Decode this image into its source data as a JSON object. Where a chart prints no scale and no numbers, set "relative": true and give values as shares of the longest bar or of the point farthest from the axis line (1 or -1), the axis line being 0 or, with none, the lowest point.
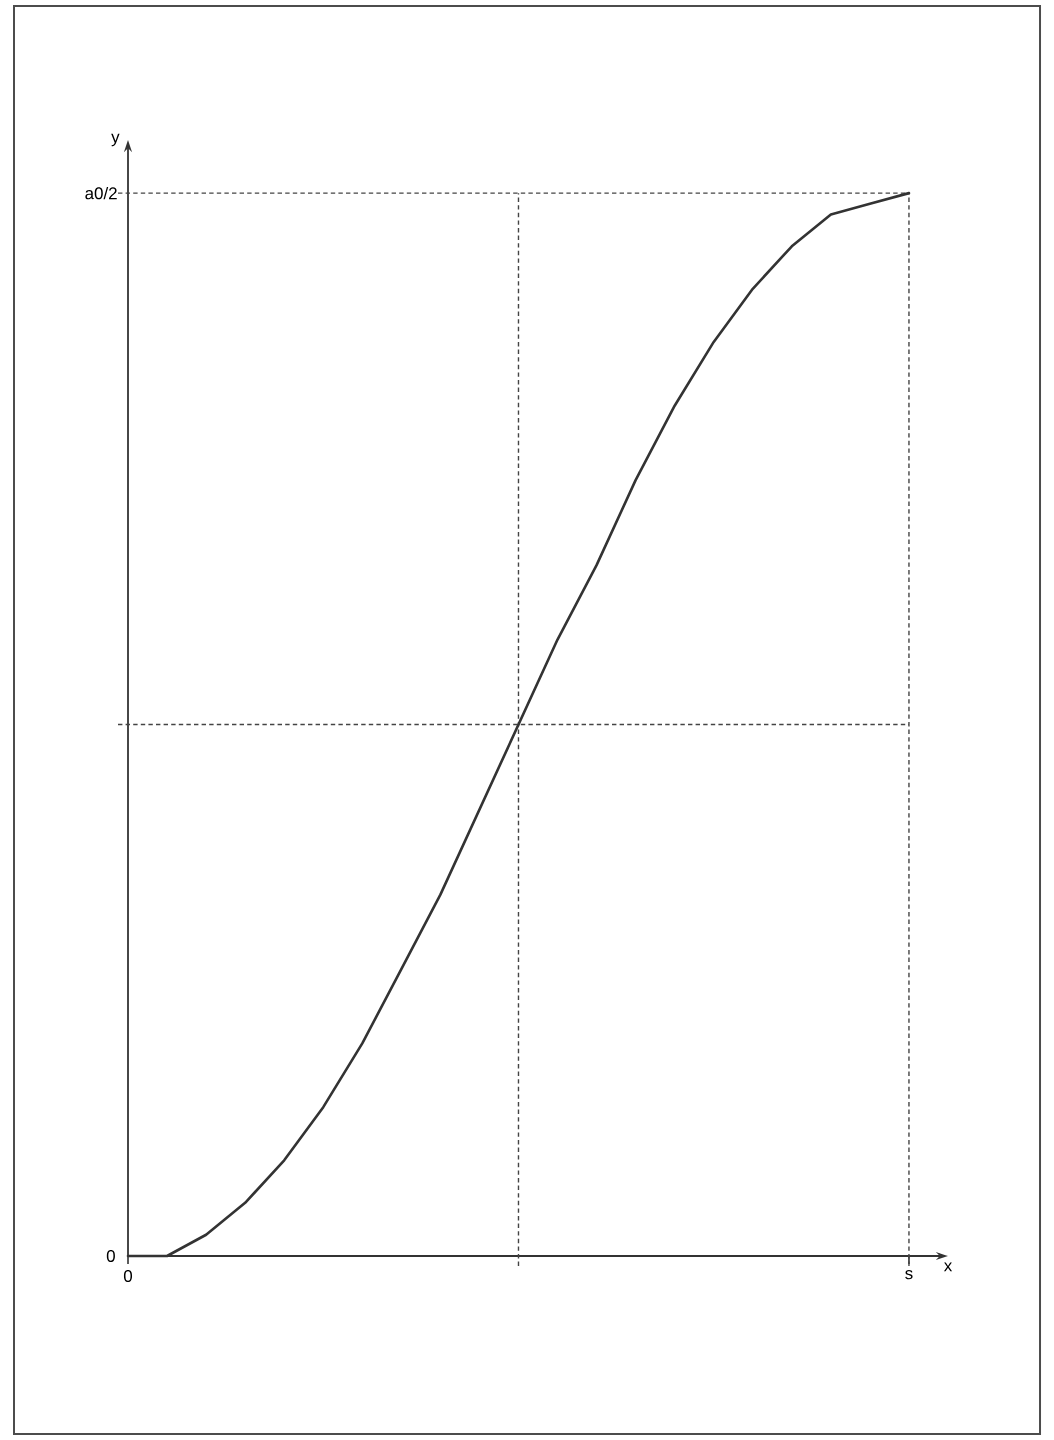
{
  "chart_data": {
    "type": "line",
    "relative": true,
    "xlabel": "x",
    "ylabel": "y",
    "categories": [
      "0",
      null,
      null,
      null,
      null,
      null,
      null,
      null,
      null,
      null,
      null,
      null,
      null,
      null,
      null,
      null,
      null,
      null,
      null,
      null,
      "s"
    ],
    "values": [
      0,
      0,
      0.02,
      0.05,
      0.09,
      0.14,
      0.2,
      0.27,
      0.34,
      0.42,
      0.5,
      0.58,
      0.65,
      0.73,
      0.8,
      0.86,
      0.91,
      0.95,
      0.98,
      0.99,
      1
    ],
    "color": "#333333",
    "marker": "none",
    "line_style": "solid",
    "ref_lines": [
      {
        "axis": "x",
        "value": "s",
        "line_style": "dashed",
        "color": "#444444"
      },
      {
        "axis": "y",
        "value": 0.5,
        "line_style": "dashed",
        "color": "#444444"
      },
      {
        "axis": "y",
        "value": 1,
        "line_style": "dashed",
        "color": "#444444",
        "label": "a0/2"
      }
    ],
    "annotations": [
      "0"
    ]
  }
}
